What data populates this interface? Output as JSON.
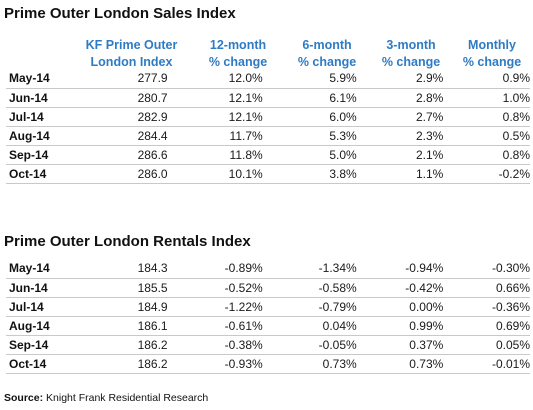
{
  "sales": {
    "title": "Prime Outer London Sales Index",
    "headers": [
      [
        "KF Prime Outer",
        "London Index"
      ],
      [
        "12-month",
        "% change"
      ],
      [
        "6-month",
        "% change"
      ],
      [
        "3-month",
        "% change"
      ],
      [
        "Monthly",
        "% change"
      ]
    ],
    "rows": [
      [
        "May-14",
        "277.9",
        "12.0%",
        "5.9%",
        "2.9%",
        "0.9%"
      ],
      [
        "Jun-14",
        "280.7",
        "12.1%",
        "6.1%",
        "2.8%",
        "1.0%"
      ],
      [
        "Jul-14",
        "282.9",
        "12.1%",
        "6.0%",
        "2.7%",
        "0.8%"
      ],
      [
        "Aug-14",
        "284.4",
        "11.7%",
        "5.3%",
        "2.3%",
        "0.5%"
      ],
      [
        "Sep-14",
        "286.6",
        "11.8%",
        "5.0%",
        "2.1%",
        "0.8%"
      ],
      [
        "Oct-14",
        "286.0",
        "10.1%",
        "3.8%",
        "1.1%",
        "-0.2%"
      ]
    ]
  },
  "rentals": {
    "title": "Prime Outer London Rentals Index",
    "rows": [
      [
        "May-14",
        "184.3",
        "-0.89%",
        "-1.34%",
        "-0.94%",
        "-0.30%"
      ],
      [
        "Jun-14",
        "185.5",
        "-0.52%",
        "-0.58%",
        "-0.42%",
        "0.66%"
      ],
      [
        "Jul-14",
        "184.9",
        "-1.22%",
        "-0.79%",
        "0.00%",
        "-0.36%"
      ],
      [
        "Aug-14",
        "186.1",
        "-0.61%",
        "0.04%",
        "0.99%",
        "0.69%"
      ],
      [
        "Sep-14",
        "186.2",
        "-0.38%",
        "-0.05%",
        "0.37%",
        "0.05%"
      ],
      [
        "Oct-14",
        "186.2",
        "-0.93%",
        "0.73%",
        "0.73%",
        "-0.01%"
      ]
    ]
  },
  "source": {
    "label": "Source:",
    "text": "Knight Frank Residential Research"
  },
  "colors": {
    "header_text": "#2e7bc4",
    "row_divider": "#c9c9c9"
  }
}
